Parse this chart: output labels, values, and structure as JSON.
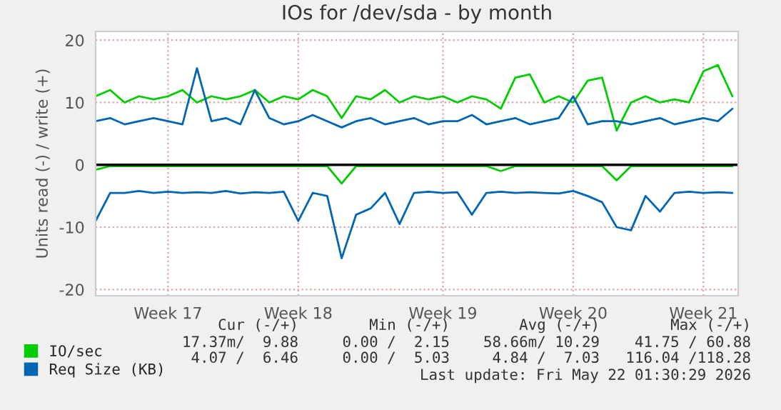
{
  "chart_data": {
    "type": "line",
    "title": "IOs for /dev/sda - by month",
    "ylabel": "Units read (-) / write (+)",
    "categories": [
      null,
      null,
      null,
      null,
      null,
      "Week 17",
      null,
      null,
      null,
      null,
      null,
      null,
      null,
      null,
      "Week 18",
      null,
      null,
      null,
      null,
      null,
      null,
      null,
      null,
      null,
      "Week 19",
      null,
      null,
      null,
      null,
      null,
      null,
      null,
      null,
      "Week 20",
      null,
      null,
      null,
      null,
      null,
      null,
      null,
      null,
      "Week 21",
      null,
      null
    ],
    "ylim": [
      -21,
      21.4
    ],
    "yticks": [
      -20,
      -10,
      0,
      10,
      20
    ],
    "series": [
      {
        "name": "IO/sec",
        "color": "#00cc00",
        "values": [
          11,
          12,
          10,
          11,
          10.5,
          11,
          12,
          10,
          11,
          10.5,
          11,
          12,
          10,
          11,
          10.5,
          12,
          11,
          7.5,
          11,
          10.5,
          12,
          10,
          11,
          10.5,
          11,
          10,
          11,
          10.5,
          9,
          14,
          14.5,
          10,
          11,
          10,
          13.5,
          14,
          5.5,
          10,
          11,
          10,
          10.5,
          10,
          15,
          16,
          11
        ]
      },
      {
        "name": "Req Size (KB)",
        "color": "#0066b3",
        "values": [
          7,
          7.5,
          6.5,
          7,
          7.5,
          7,
          6.5,
          15.5,
          7,
          7.5,
          6.5,
          12,
          7.5,
          6.5,
          7,
          8,
          7,
          6,
          7,
          7.5,
          6.5,
          7,
          7.5,
          6.5,
          7,
          7,
          8,
          6.5,
          7,
          7.5,
          6.5,
          7,
          7.5,
          11,
          6.5,
          7,
          7,
          6.5,
          7,
          7.5,
          6.5,
          7,
          7.5,
          7,
          9
        ]
      },
      {
        "color": "#00cc00",
        "values": [
          -0.8,
          -0.2,
          -0.2,
          -0.2,
          -0.2,
          -0.2,
          -0.2,
          -0.2,
          -0.2,
          -0.2,
          -0.2,
          -0.2,
          -0.2,
          -0.2,
          -0.2,
          -0.2,
          -0.2,
          -3,
          -0.2,
          -0.2,
          -0.2,
          -0.2,
          -0.2,
          -0.2,
          -0.2,
          -0.2,
          -0.2,
          -0.2,
          -1,
          -0.2,
          -0.2,
          -0.2,
          -0.2,
          -0.2,
          -0.2,
          -0.2,
          -2.5,
          -0.2,
          -0.2,
          -0.2,
          -0.2,
          -0.2,
          -0.2,
          -0.2,
          -0.2
        ]
      },
      {
        "color": "#0066b3",
        "values": [
          -9,
          -4.5,
          -4.5,
          -4.2,
          -4.5,
          -4.3,
          -4.5,
          -4.4,
          -4.5,
          -4.2,
          -4.6,
          -4.4,
          -4.5,
          -4.3,
          -9,
          -4.5,
          -5,
          -15,
          -8,
          -7,
          -4.5,
          -9.5,
          -4.5,
          -4.3,
          -4.5,
          -4.4,
          -8,
          -4.5,
          -4.3,
          -4.5,
          -4.4,
          -4.5,
          -4.6,
          -4.2,
          -5,
          -6,
          -10,
          -10.5,
          -5,
          -7.5,
          -4.5,
          -4.3,
          -4.5,
          -4.4,
          -4.5
        ]
      }
    ],
    "ref_lines": [
      {
        "axis": "y",
        "value": 0,
        "color": "#000000"
      }
    ],
    "grid": true,
    "legend": "bottom left",
    "marker": "none",
    "line_style": "solid",
    "annotations": [
      "Cur (-/+)",
      "Min (-/+)",
      "Avg (-/+)",
      "Max (-/+)",
      "17.37m/  9.88",
      "0.00 /  2.15",
      "58.66m/ 10.29",
      "41.75 / 60.88",
      "4.07 /  6.46",
      "0.00 /  5.03",
      "4.84 /  7.03",
      "116.04 /118.28",
      "Last update: Fri May 22 01:30:29 2026"
    ]
  }
}
